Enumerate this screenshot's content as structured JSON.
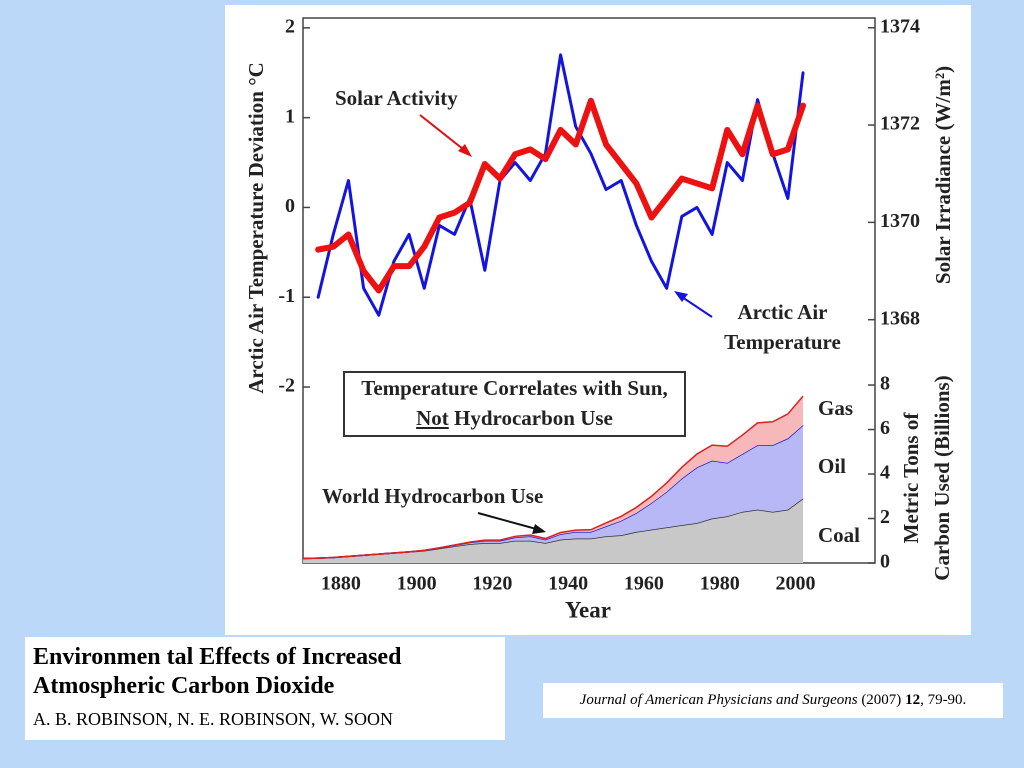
{
  "chart_data": {
    "type": "combo",
    "x": [
      1870,
      1874,
      1878,
      1882,
      1886,
      1890,
      1894,
      1898,
      1902,
      1906,
      1910,
      1914,
      1918,
      1922,
      1926,
      1930,
      1934,
      1938,
      1942,
      1946,
      1950,
      1954,
      1958,
      1962,
      1966,
      1970,
      1974,
      1978,
      1982,
      1986,
      1990,
      1994,
      1998,
      2002
    ],
    "xlim": [
      1870,
      2021
    ],
    "xticks": [
      1880,
      1900,
      1920,
      1940,
      1960,
      1980,
      2000
    ],
    "xlabel": "Year",
    "ylabel": "Arctic Air Temperature Deviation °C",
    "ylim": [
      -3.96,
      2.11
    ],
    "yticks": [
      -2,
      -1,
      0,
      1,
      2
    ],
    "y2label": "Solar Irradiance (W/m²)",
    "y2lim": [
      1363.0,
      1374.2
    ],
    "y2ticks": [
      1368,
      1370,
      1372,
      1374
    ],
    "y3label": [
      "Metric Tons of",
      "Carbon Used (Billions)"
    ],
    "y3lim": [
      0,
      24.5
    ],
    "y3ticks": [
      0,
      2,
      4,
      6,
      8
    ],
    "series": [
      {
        "name": "Arctic Air Temperature",
        "type": "line",
        "color": "#1414e0",
        "values": [
          null,
          -1.0,
          -0.3,
          0.3,
          -0.9,
          -1.2,
          -0.6,
          -0.3,
          -0.9,
          -0.2,
          -0.3,
          0.1,
          -0.7,
          0.3,
          0.5,
          0.3,
          0.6,
          1.7,
          0.9,
          0.6,
          0.2,
          0.3,
          -0.2,
          -0.6,
          -0.9,
          -0.1,
          0.0,
          -0.3,
          0.5,
          0.3,
          1.2,
          0.6,
          0.1,
          1.5
        ]
      },
      {
        "name": "Solar Activity",
        "type": "line",
        "axis": "y2",
        "color": "#ee1111",
        "values": [
          null,
          1369.44,
          1369.5,
          1369.75,
          1369.0,
          1368.6,
          1369.1,
          1369.1,
          1369.5,
          1370.1,
          1370.2,
          1370.4,
          1371.2,
          1370.9,
          1371.4,
          1371.5,
          1371.3,
          1371.9,
          1371.6,
          1372.5,
          1371.6,
          1371.2,
          1370.8,
          1370.1,
          1370.5,
          1370.9,
          1370.8,
          1370.7,
          1371.9,
          1371.4,
          1372.4,
          1371.4,
          1371.5,
          1372.4
        ]
      },
      {
        "name": "Coal",
        "type": "area",
        "axis": "y3",
        "color": "#c8c8c8",
        "line_color": "#333333",
        "values": [
          0.2,
          0.22,
          0.25,
          0.3,
          0.35,
          0.4,
          0.45,
          0.5,
          0.55,
          0.65,
          0.75,
          0.85,
          0.9,
          0.9,
          1.0,
          1.0,
          0.9,
          1.05,
          1.1,
          1.1,
          1.2,
          1.25,
          1.4,
          1.5,
          1.6,
          1.7,
          1.8,
          2.0,
          2.1,
          2.3,
          2.4,
          2.3,
          2.4,
          2.9
        ]
      },
      {
        "name": "Oil",
        "type": "area",
        "axis": "y3",
        "color": "#b8b8f6",
        "line_color": "#2020d0",
        "values": [
          0,
          0,
          0,
          0,
          0,
          0,
          0,
          0,
          0.02,
          0.03,
          0.05,
          0.07,
          0.1,
          0.1,
          0.15,
          0.2,
          0.15,
          0.25,
          0.3,
          0.3,
          0.45,
          0.65,
          0.85,
          1.2,
          1.6,
          2.1,
          2.5,
          2.6,
          2.4,
          2.6,
          2.9,
          3.0,
          3.2,
          3.3
        ]
      },
      {
        "name": "Gas",
        "type": "area",
        "axis": "y3",
        "color": "#f6b8b8",
        "line_color": "#e02020",
        "values": [
          0,
          0,
          0,
          0,
          0,
          0,
          0,
          0,
          0,
          0,
          0.01,
          0.02,
          0.03,
          0.03,
          0.05,
          0.06,
          0.05,
          0.07,
          0.08,
          0.1,
          0.15,
          0.2,
          0.25,
          0.3,
          0.4,
          0.5,
          0.6,
          0.7,
          0.75,
          0.85,
          1.0,
          1.05,
          1.1,
          1.3
        ]
      }
    ],
    "stacked_areas": true,
    "annotation": "World Hydrocarbon Use",
    "box": {
      "before": "Temperature Correlates with Sun,",
      "emphasis": "Not",
      "after": "Hydrocarbon Use"
    }
  },
  "slide": {
    "title": "Environmen tal Effects of Increased Atmospheric Carbon Dioxide",
    "authors": "A. B. ROBINSON, N. E. ROBINSON, W. SOON",
    "citation": {
      "journal": "Journal of American Physicians and Surgeons",
      "year": "(2007)",
      "volume": "12",
      "pages": ", 79-90."
    }
  }
}
